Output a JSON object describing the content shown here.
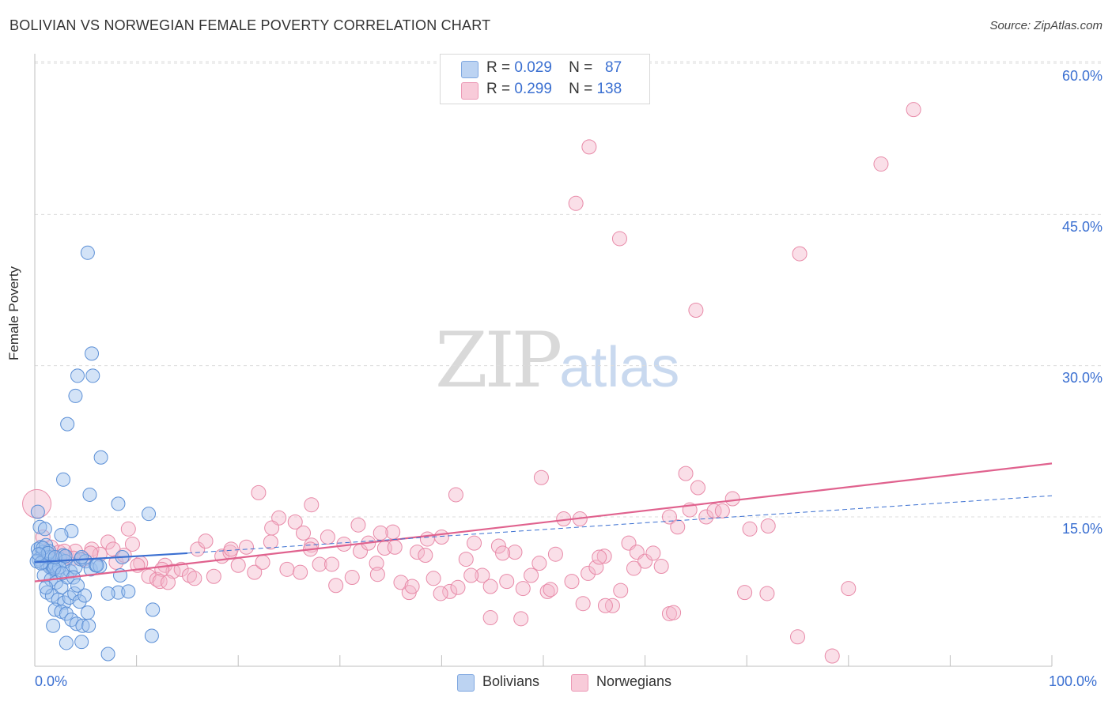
{
  "header": {
    "title": "BOLIVIAN VS NORWEGIAN FEMALE POVERTY CORRELATION CHART",
    "source": "Source: ZipAtlas.com"
  },
  "watermark": {
    "zip": "ZIP",
    "atlas": "atlas"
  },
  "legend": {
    "rows": [
      {
        "r_label": "R =",
        "r_value": "0.029",
        "n_label": "N =",
        "n_value": "87",
        "color": "#9dc0ee"
      },
      {
        "r_label": "R =",
        "r_value": "0.299",
        "n_label": "N =",
        "n_value": "138",
        "color": "#f5b8cc"
      }
    ],
    "bottom": [
      "Bolivians",
      "Norwegians"
    ]
  },
  "colors": {
    "bolivian_fill": "#9dc0ee",
    "bolivian_stroke": "#5b8fd6",
    "bolivian_line": "#3a6fd1",
    "norwegian_fill": "#f5b8cc",
    "norwegian_stroke": "#e88aa8",
    "norwegian_line": "#e0628e"
  },
  "chart_data": {
    "type": "scatter",
    "title": "BOLIVIAN VS NORWEGIAN FEMALE POVERTY CORRELATION CHART",
    "xlabel": "",
    "ylabel": "Female Poverty",
    "xlim": [
      0,
      100
    ],
    "ylim": [
      0,
      62
    ],
    "x_tick_labels": [
      "0.0%",
      "100.0%"
    ],
    "y_ticks": [
      15,
      30,
      45,
      60
    ],
    "y_tick_labels": [
      "15.0%",
      "30.0%",
      "45.0%",
      "60.0%"
    ],
    "grid": "horizontal dashed",
    "legend_position": "top-center",
    "series": [
      {
        "name": "Bolivians",
        "R": 0.029,
        "N": 87,
        "trend_solid": [
          [
            0,
            10.5
          ],
          [
            15,
            11.4
          ]
        ],
        "trend_dashed": [
          [
            15,
            11.4
          ],
          [
            100,
            17.1
          ]
        ],
        "points": [
          [
            0.3,
            15.5
          ],
          [
            0.5,
            14.0
          ],
          [
            0.3,
            11.8
          ],
          [
            0.6,
            12.0
          ],
          [
            0.8,
            11.5
          ],
          [
            1.0,
            11.0
          ],
          [
            0.4,
            10.8
          ],
          [
            0.7,
            10.5
          ],
          [
            1.2,
            10.3
          ],
          [
            1.5,
            10.0
          ],
          [
            1.8,
            9.8
          ],
          [
            2.0,
            10.2
          ],
          [
            2.2,
            9.5
          ],
          [
            2.5,
            10.8
          ],
          [
            2.8,
            11.2
          ],
          [
            3.0,
            10.6
          ],
          [
            1.1,
            12.2
          ],
          [
            1.4,
            11.6
          ],
          [
            0.9,
            9.2
          ],
          [
            1.6,
            8.8
          ],
          [
            2.1,
            8.5
          ],
          [
            2.6,
            8.0
          ],
          [
            3.2,
            9.0
          ],
          [
            3.5,
            9.6
          ],
          [
            4.0,
            10.0
          ],
          [
            4.5,
            10.8
          ],
          [
            5.0,
            10.6
          ],
          [
            5.5,
            9.8
          ],
          [
            6.0,
            10.2
          ],
          [
            6.4,
            10.1
          ],
          [
            1.2,
            7.5
          ],
          [
            1.7,
            7.2
          ],
          [
            2.3,
            6.8
          ],
          [
            2.9,
            6.5
          ],
          [
            3.4,
            7.0
          ],
          [
            3.9,
            7.4
          ],
          [
            4.4,
            6.6
          ],
          [
            4.9,
            7.2
          ],
          [
            5.2,
            5.5
          ],
          [
            2.0,
            5.8
          ],
          [
            2.6,
            5.6
          ],
          [
            3.1,
            5.4
          ],
          [
            3.6,
            4.8
          ],
          [
            4.1,
            4.4
          ],
          [
            4.7,
            4.2
          ],
          [
            5.3,
            4.2
          ],
          [
            1.8,
            4.2
          ],
          [
            3.1,
            2.5
          ],
          [
            4.6,
            2.6
          ],
          [
            7.2,
            1.4
          ],
          [
            3.6,
            13.6
          ],
          [
            2.6,
            13.2
          ],
          [
            1.0,
            13.8
          ],
          [
            8.2,
            7.5
          ],
          [
            9.2,
            7.6
          ],
          [
            8.4,
            9.2
          ],
          [
            11.6,
            5.8
          ],
          [
            11.5,
            3.2
          ],
          [
            8.6,
            11.0
          ],
          [
            7.2,
            7.4
          ],
          [
            5.2,
            41.2
          ],
          [
            5.6,
            31.2
          ],
          [
            5.7,
            29.0
          ],
          [
            4.2,
            29.0
          ],
          [
            4.0,
            27.0
          ],
          [
            3.2,
            24.2
          ],
          [
            6.5,
            20.9
          ],
          [
            2.8,
            18.7
          ],
          [
            5.4,
            17.2
          ],
          [
            8.2,
            16.3
          ],
          [
            11.2,
            15.3
          ],
          [
            1.4,
            11.0
          ],
          [
            2.4,
            10.0
          ],
          [
            0.2,
            10.6
          ],
          [
            0.6,
            10.4
          ],
          [
            1.9,
            9.9
          ],
          [
            2.7,
            9.4
          ],
          [
            3.8,
            9.0
          ],
          [
            4.2,
            8.2
          ],
          [
            1.1,
            8.0
          ],
          [
            0.8,
            11.9
          ],
          [
            1.3,
            11.4
          ],
          [
            2.0,
            11.0
          ],
          [
            0.4,
            11.3
          ],
          [
            3.0,
            11.1
          ],
          [
            4.6,
            11.0
          ],
          [
            6.1,
            10.2
          ]
        ]
      },
      {
        "name": "Norwegians",
        "R": 0.299,
        "N": 138,
        "trend_solid": [
          [
            0,
            8.6
          ],
          [
            100,
            20.3
          ]
        ],
        "points": [
          [
            0.2,
            16.3
          ],
          [
            0.8,
            13.0
          ],
          [
            1.6,
            12.0
          ],
          [
            2.4,
            11.5
          ],
          [
            3.2,
            11.0
          ],
          [
            4.0,
            11.6
          ],
          [
            4.8,
            10.8
          ],
          [
            5.6,
            11.8
          ],
          [
            6.4,
            11.3
          ],
          [
            7.2,
            12.5
          ],
          [
            8.0,
            10.5
          ],
          [
            8.8,
            11.2
          ],
          [
            9.6,
            12.3
          ],
          [
            10.4,
            10.4
          ],
          [
            11.2,
            9.1
          ],
          [
            12.0,
            8.8
          ],
          [
            12.8,
            10.2
          ],
          [
            13.6,
            9.6
          ],
          [
            14.4,
            9.8
          ],
          [
            15.2,
            9.2
          ],
          [
            16.0,
            11.8
          ],
          [
            16.8,
            12.6
          ],
          [
            17.6,
            9.1
          ],
          [
            18.4,
            11.1
          ],
          [
            19.2,
            11.5
          ],
          [
            20.0,
            10.2
          ],
          [
            20.8,
            12.0
          ],
          [
            21.6,
            9.5
          ],
          [
            22.4,
            10.5
          ],
          [
            23.2,
            12.5
          ],
          [
            24.0,
            14.9
          ],
          [
            24.8,
            9.8
          ],
          [
            25.6,
            14.5
          ],
          [
            26.4,
            13.4
          ],
          [
            27.2,
            12.2
          ],
          [
            28.0,
            10.3
          ],
          [
            28.8,
            13.0
          ],
          [
            29.6,
            8.2
          ],
          [
            30.4,
            12.3
          ],
          [
            31.2,
            9.0
          ],
          [
            32.0,
            11.6
          ],
          [
            32.8,
            12.4
          ],
          [
            33.6,
            10.4
          ],
          [
            34.4,
            11.9
          ],
          [
            35.2,
            13.5
          ],
          [
            36.0,
            8.5
          ],
          [
            36.8,
            7.5
          ],
          [
            37.6,
            11.5
          ],
          [
            38.4,
            11.2
          ],
          [
            39.2,
            8.9
          ],
          [
            40.0,
            13.0
          ],
          [
            40.8,
            7.6
          ],
          [
            41.6,
            8.0
          ],
          [
            42.4,
            10.8
          ],
          [
            43.2,
            12.4
          ],
          [
            44.0,
            9.2
          ],
          [
            44.8,
            8.1
          ],
          [
            45.6,
            12.1
          ],
          [
            46.4,
            8.6
          ],
          [
            47.2,
            11.5
          ],
          [
            48.0,
            7.9
          ],
          [
            48.8,
            9.2
          ],
          [
            49.6,
            10.4
          ],
          [
            50.4,
            7.6
          ],
          [
            51.2,
            11.3
          ],
          [
            52.0,
            14.8
          ],
          [
            52.8,
            8.6
          ],
          [
            53.6,
            14.8
          ],
          [
            54.4,
            9.4
          ],
          [
            55.2,
            10.0
          ],
          [
            56.0,
            11.1
          ],
          [
            56.8,
            6.2
          ],
          [
            57.6,
            7.7
          ],
          [
            58.4,
            12.4
          ],
          [
            59.2,
            11.5
          ],
          [
            60.0,
            10.6
          ],
          [
            60.8,
            11.4
          ],
          [
            61.6,
            10.1
          ],
          [
            62.4,
            15.0
          ],
          [
            63.2,
            14.0
          ],
          [
            64.4,
            15.7
          ],
          [
            65.2,
            17.9
          ],
          [
            66.0,
            15.0
          ],
          [
            66.8,
            15.6
          ],
          [
            67.6,
            15.6
          ],
          [
            22.0,
            17.4
          ],
          [
            27.2,
            16.2
          ],
          [
            34.0,
            13.4
          ],
          [
            38.6,
            12.8
          ],
          [
            41.4,
            17.2
          ],
          [
            49.8,
            18.9
          ],
          [
            54.5,
            51.7
          ],
          [
            53.2,
            46.1
          ],
          [
            57.5,
            42.6
          ],
          [
            75.2,
            41.1
          ],
          [
            65.0,
            35.5
          ],
          [
            86.4,
            55.4
          ],
          [
            83.2,
            50.0
          ],
          [
            64.0,
            19.3
          ],
          [
            68.6,
            16.8
          ],
          [
            70.3,
            13.8
          ],
          [
            72.1,
            14.1
          ],
          [
            69.8,
            7.5
          ],
          [
            72.0,
            7.4
          ],
          [
            75.0,
            3.1
          ],
          [
            80.0,
            7.9
          ],
          [
            78.4,
            1.2
          ],
          [
            62.4,
            5.4
          ],
          [
            62.8,
            5.5
          ],
          [
            56.1,
            6.2
          ],
          [
            47.8,
            4.9
          ],
          [
            44.8,
            5.0
          ],
          [
            33.7,
            9.3
          ],
          [
            29.2,
            10.3
          ],
          [
            26.1,
            9.5
          ],
          [
            12.5,
            9.8
          ],
          [
            12.3,
            8.6
          ],
          [
            13.1,
            8.5
          ],
          [
            15.7,
            8.9
          ],
          [
            19.3,
            11.8
          ],
          [
            23.3,
            13.9
          ],
          [
            27.1,
            11.8
          ],
          [
            31.8,
            14.2
          ],
          [
            35.4,
            12.0
          ],
          [
            37.1,
            8.1
          ],
          [
            39.9,
            7.4
          ],
          [
            42.9,
            9.2
          ],
          [
            46.0,
            11.4
          ],
          [
            50.7,
            7.8
          ],
          [
            53.9,
            6.4
          ],
          [
            55.5,
            11.0
          ],
          [
            58.9,
            9.9
          ],
          [
            9.2,
            13.8
          ],
          [
            10.1,
            10.2
          ],
          [
            5.5,
            11.4
          ],
          [
            7.7,
            11.8
          ],
          [
            3.8,
            10.9
          ],
          [
            2.9,
            11.6
          ]
        ]
      }
    ]
  }
}
